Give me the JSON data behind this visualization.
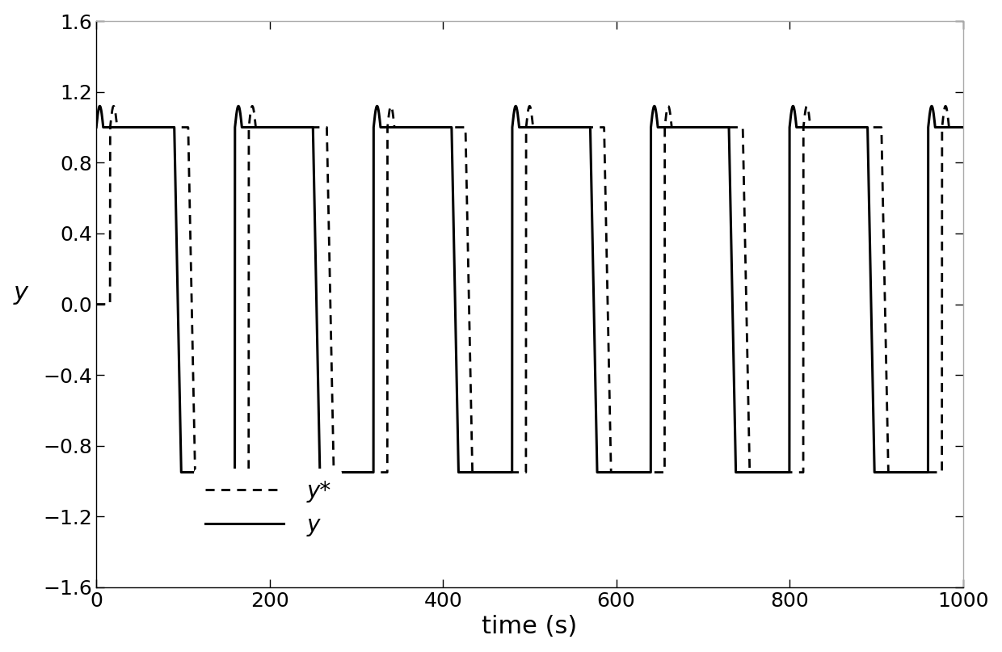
{
  "xlabel": "time (s)",
  "ylabel": "y",
  "xlim": [
    0,
    1000
  ],
  "ylim": [
    -1.6,
    1.6
  ],
  "xticks": [
    0,
    200,
    400,
    600,
    800,
    1000
  ],
  "yticks": [
    -1.6,
    -1.2,
    -0.8,
    -0.4,
    0.0,
    0.4,
    0.8,
    1.2,
    1.6
  ],
  "background_color": "#ffffff",
  "line_color": "#000000",
  "period": 160,
  "high_val": 1.0,
  "low_val": -0.95,
  "overshoot_amp": 0.12,
  "total_time": 1000,
  "dt": 0.2,
  "high_duration": 90,
  "low_duration": 70,
  "rise_dur": 8.0,
  "lag_dashed": 16,
  "legend_y_label": "y",
  "legend_ystar_label": "y*",
  "xlabel_fontsize": 22,
  "ylabel_fontsize": 22,
  "tick_fontsize": 18,
  "legend_fontsize": 20,
  "linewidth_solid": 2.2,
  "linewidth_dashed": 2.0
}
